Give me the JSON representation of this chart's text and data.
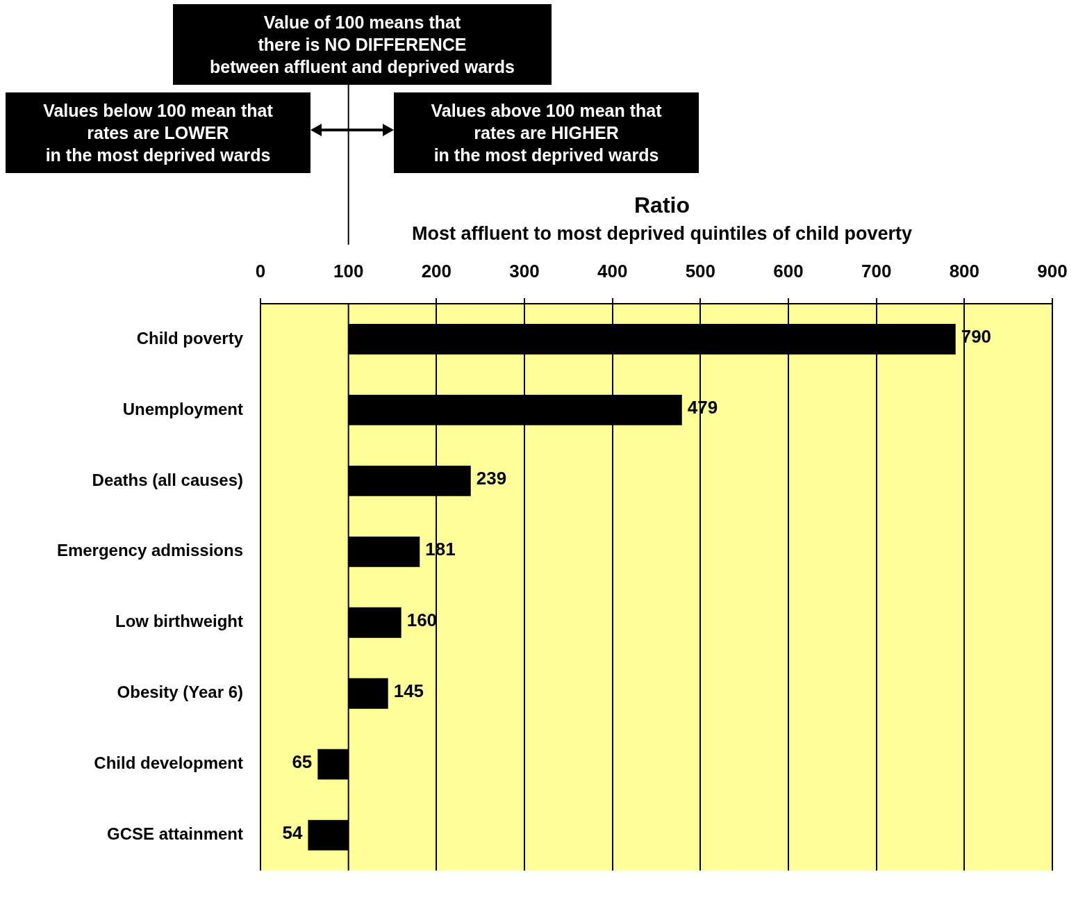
{
  "chart_data": {
    "type": "bar",
    "orientation": "horizontal",
    "title": "Ratio",
    "subtitle": "Most affluent to most deprived quintiles of child poverty",
    "categories": [
      "Child poverty",
      "Unemployment",
      "Deaths (all causes)",
      "Emergency admissions",
      "Low birthweight",
      "Obesity (Year 6)",
      "Child development",
      "GCSE attainment"
    ],
    "base": [
      100,
      100,
      100,
      100,
      100,
      100,
      100,
      100
    ],
    "values": [
      690,
      379,
      139,
      81,
      60,
      45,
      -35,
      -46
    ],
    "value_labels": [
      "790",
      "479",
      "239",
      "181",
      "160",
      "145",
      "65",
      "54"
    ],
    "color": "#000000",
    "xlim": [
      0,
      900
    ],
    "xticks": [
      0,
      100,
      200,
      300,
      400,
      500,
      600,
      700,
      800,
      900
    ],
    "grid": "x",
    "legend": false,
    "ref_lines": [
      {
        "axis": "x",
        "value": 100,
        "label": "Value of 100 means that\nthere is NO DIFFERENCE\nbetween affluent and deprived wards",
        "color": "#000000"
      }
    ],
    "annotations": [
      "Values below 100 mean that\nrates are LOWER\nin the most deprived wards",
      "Values above 100 mean that\nrates are HIGHER\nin the most deprived wards"
    ]
  }
}
